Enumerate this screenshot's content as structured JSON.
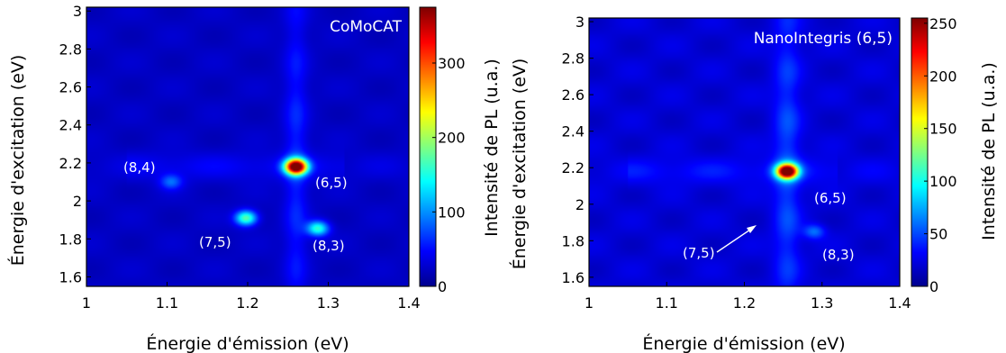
{
  "chart_data": [
    {
      "type": "heatmap",
      "title": "CoMoCAT",
      "xlabel": "Énergie d'émission (eV)",
      "ylabel": "Énergie d'excitation (eV)",
      "colorbar_label": "Intensité de PL (u.a.)",
      "xlim": [
        1.0,
        1.4
      ],
      "ylim": [
        1.55,
        3.02
      ],
      "clim": [
        0,
        375
      ],
      "xticks": [
        "1",
        "1.1",
        "1.2",
        "1.3",
        "1.4"
      ],
      "yticks": [
        "1.6",
        "1.8",
        "2",
        "2.2",
        "2.4",
        "2.6",
        "2.8",
        "3"
      ],
      "cticks": [
        "0",
        "100",
        "200",
        "300"
      ],
      "colormap": [
        "#00008f",
        "#0000ff",
        "#0080ff",
        "#00ffff",
        "#80ff80",
        "#ffff00",
        "#ff8000",
        "#ff0000",
        "#800000"
      ],
      "background": 22,
      "vertical_band": {
        "x": 1.26,
        "width": 0.01,
        "amplitude": 38
      },
      "horizontal_band": {
        "y": 2.18,
        "width": 0.05,
        "amplitude": 20
      },
      "peaks": [
        {
          "label": "(6,5)",
          "x": 1.26,
          "y": 2.18,
          "value": 370
        },
        {
          "label": "(7,5)",
          "x": 1.198,
          "y": 1.91,
          "value": 155
        },
        {
          "label": "(8,3)",
          "x": 1.287,
          "y": 1.855,
          "value": 135
        },
        {
          "label": "(8,4)",
          "x": 1.105,
          "y": 2.1,
          "value": 60
        }
      ]
    },
    {
      "type": "heatmap",
      "title": "NanoIntegris (6,5)",
      "xlabel": "Énergie d'émission (eV)",
      "ylabel": "Énergie d'excitation (eV)",
      "colorbar_label": "Intensité de PL (u.a.)",
      "xlim": [
        1.0,
        1.4
      ],
      "ylim": [
        1.55,
        3.02
      ],
      "clim": [
        0,
        255
      ],
      "xticks": [
        "1",
        "1.1",
        "1.2",
        "1.3",
        "1.4"
      ],
      "yticks": [
        "1.6",
        "1.8",
        "2",
        "2.2",
        "2.4",
        "2.6",
        "2.8",
        "3"
      ],
      "cticks": [
        "0",
        "50",
        "100",
        "150",
        "200",
        "250"
      ],
      "colormap": [
        "#00008f",
        "#0000ff",
        "#0080ff",
        "#00ffff",
        "#80ff80",
        "#ffff00",
        "#ff8000",
        "#ff0000",
        "#800000"
      ],
      "background": 20,
      "vertical_band": {
        "x": 1.255,
        "width": 0.012,
        "amplitude": 30
      },
      "horizontal_band": {
        "y": 2.18,
        "width": 0.05,
        "amplitude": 14
      },
      "peaks": [
        {
          "label": "(6,5)",
          "x": 1.255,
          "y": 2.18,
          "value": 252
        },
        {
          "label": "(7,5)",
          "x": 1.198,
          "y": 1.9,
          "value": 0
        },
        {
          "label": "(8,3)",
          "x": 1.29,
          "y": 1.85,
          "value": 40
        }
      ]
    }
  ]
}
